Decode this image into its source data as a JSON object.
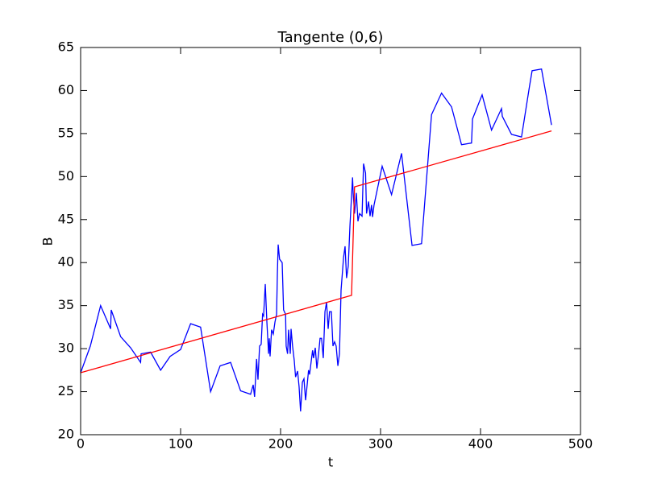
{
  "chart_data": {
    "type": "line",
    "title": "Tangente (0,6)",
    "x_label": "t",
    "y_label": "B",
    "xlim": [
      0,
      500
    ],
    "xticks": [
      0,
      100,
      200,
      300,
      400,
      500
    ],
    "ylim": [
      20,
      65
    ],
    "yticks": [
      20,
      25,
      30,
      35,
      40,
      45,
      50,
      55,
      60,
      65
    ],
    "grid": false,
    "series": [
      {
        "color": "#0000ff",
        "x": [
          0,
          9.7,
          20,
          30,
          30.6,
          40,
          50,
          60,
          60.5,
          70,
          80,
          89.5,
          100,
          110,
          120,
          130,
          139.5,
          150,
          160,
          170,
          172.6,
          174,
          176,
          177.4,
          179,
          180.6,
          182,
          183,
          184.7,
          186.3,
          188,
          188.7,
          189.5,
          191,
          192.7,
          194.4,
          196,
          196.8,
          197.6,
          199,
          201.6,
          203,
          205,
          205.6,
          207,
          208,
          209.7,
          210.5,
          212,
          213.7,
          215,
          217,
          218.5,
          220,
          221.8,
          223.4,
          225,
          226.6,
          228,
          229,
          230.6,
          232,
          233,
          234.7,
          236.3,
          238,
          239.5,
          241,
          242.7,
          244.4,
          246,
          247.6,
          249,
          250.8,
          252.4,
          254,
          255.6,
          257.3,
          258.9,
          260.5,
          263,
          264.5,
          266,
          267.7,
          269.4,
          272,
          272.6,
          274,
          275.8,
          277.4,
          279,
          281.5,
          283,
          285,
          286,
          288,
          289.5,
          291,
          292,
          293.5,
          301.6,
          311,
          321,
          331.5,
          341,
          351,
          361,
          371,
          381,
          391,
          392,
          401.6,
          411,
          421,
          421.8,
          431,
          441,
          449,
          451.6,
          461,
          471
        ],
        "values": [
          27.2,
          30.3,
          35.0,
          32.3,
          34.5,
          31.4,
          30.1,
          28.4,
          29.4,
          29.6,
          27.5,
          29.1,
          29.9,
          32.9,
          32.5,
          25.0,
          28.0,
          28.4,
          25.1,
          24.7,
          25.8,
          24.4,
          28.8,
          26.4,
          30.3,
          30.5,
          34.0,
          33.8,
          37.5,
          33.1,
          29.4,
          31.2,
          29.1,
          32.2,
          31.7,
          33.1,
          34.0,
          38.7,
          42.1,
          40.4,
          40.0,
          34.5,
          34.0,
          30.3,
          29.4,
          32.2,
          29.4,
          32.3,
          30.3,
          28.6,
          26.7,
          27.4,
          25.6,
          22.7,
          26.1,
          26.5,
          24.0,
          25.8,
          27.5,
          27.0,
          28.5,
          29.8,
          28.9,
          30.1,
          27.7,
          29.4,
          31.2,
          31.2,
          28.9,
          34.3,
          35.4,
          32.3,
          34.3,
          34.3,
          30.3,
          30.8,
          30.3,
          28.0,
          29.4,
          36.8,
          40.6,
          41.9,
          38.2,
          39.6,
          44.3,
          49.9,
          48.1,
          45.7,
          48.1,
          44.8,
          45.7,
          45.4,
          51.5,
          50.4,
          45.7,
          47.1,
          45.4,
          46.7,
          45.3,
          46.7,
          51.2,
          47.9,
          52.7,
          42.0,
          42.2,
          57.2,
          59.7,
          58.1,
          53.7,
          53.9,
          56.7,
          59.5,
          55.4,
          57.9,
          57.0,
          54.9,
          54.6,
          60.5,
          62.3,
          62.5,
          56.0
        ]
      },
      {
        "color": "#ff0000",
        "x": [
          0,
          271,
          274,
          471
        ],
        "values": [
          27.2,
          36.2,
          48.8,
          55.3
        ]
      }
    ]
  }
}
